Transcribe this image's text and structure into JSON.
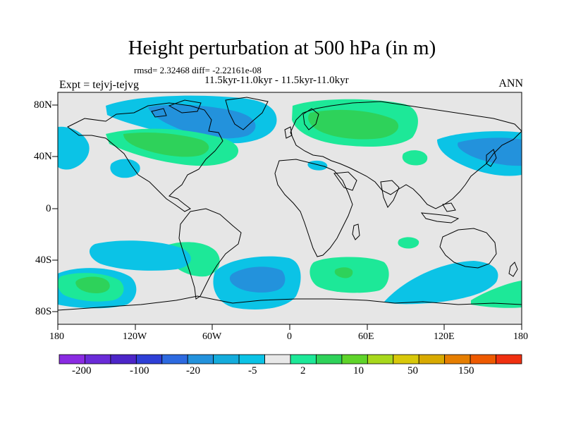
{
  "title": "Height perturbation at 500 hPa (in m)",
  "stats_line": "rmsd= 2.32468  diff= -2.22161e-08",
  "subtitle": "11.5kyr-11.0kyr - 11.5kyr-11.0kyr",
  "experiment": "Expt = tejvj-tejvg",
  "season": "ANN",
  "lat_ticks": [
    "80N",
    "40N",
    "0",
    "40S",
    "80S"
  ],
  "lon_ticks": [
    "180",
    "120W",
    "60W",
    "0",
    "60E",
    "120E",
    "180"
  ],
  "colorbar": {
    "labels": [
      "-200",
      "-100",
      "-20",
      "-5",
      "2",
      "10",
      "50",
      "150"
    ],
    "colors": [
      "#8a2be2",
      "#6a2bd8",
      "#4c25c8",
      "#2e3fd6",
      "#2d6ae0",
      "#2392dc",
      "#14acdc",
      "#0bc3e6",
      "#e8e8e8",
      "#1de898",
      "#2ed25a",
      "#5fd42a",
      "#a8d81c",
      "#d8c80a",
      "#d8aa00",
      "#e67e00",
      "#ee5a00",
      "#f03010"
    ]
  },
  "palette": {
    "land_bg": "#e6e6e6",
    "neg_light": "#0bc3e6",
    "neg_mid": "#2392dc",
    "pos_light": "#1de898",
    "pos_mid": "#2ed25a"
  }
}
